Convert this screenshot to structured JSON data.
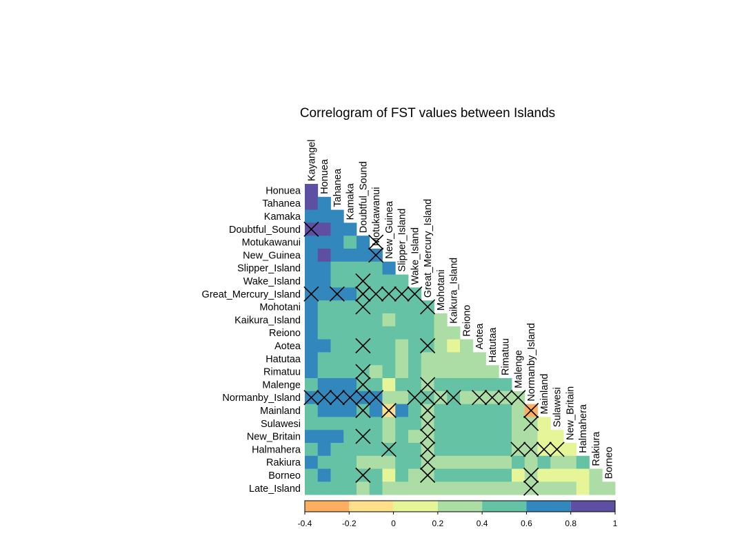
{
  "chart_data": {
    "type": "heatmap",
    "title": "Correlogram of FST values between Islands",
    "islands": [
      "Kayangel",
      "Honuea",
      "Tahanea",
      "Kamaka",
      "Doubtful_Sound",
      "Motukawanui",
      "New_Guinea",
      "Slipper_Island",
      "Wake_Island",
      "Great_Mercury_Island",
      "Mohotani",
      "Kaikura_Island",
      "Reiono",
      "Aotea",
      "Hatutaa",
      "Rimatuu",
      "Malenge",
      "Normanby_Island",
      "Mainland",
      "Sulawesi",
      "New_Britain",
      "Halmahera",
      "Rakiura",
      "Borneo",
      "Late_Island"
    ],
    "row_labels": [
      "Honuea",
      "Tahanea",
      "Kamaka",
      "Doubtful_Sound",
      "Motukawanui",
      "New_Guinea",
      "Slipper_Island",
      "Wake_Island",
      "Great_Mercury_Island",
      "Mohotani",
      "Kaikura_Island",
      "Reiono",
      "Aotea",
      "Hatutaa",
      "Rimatuu",
      "Malenge",
      "Normanby_Island",
      "Mainland",
      "Sulawesi",
      "New_Britain",
      "Halmahera",
      "Rakiura",
      "Borneo",
      "Late_Island"
    ],
    "col_labels": [
      "Kayangel",
      "Honuea",
      "Tahanea",
      "Kamaka",
      "Doubtful_Sound",
      "Motukawanui",
      "New_Guinea",
      "Slipper_Island",
      "Wake_Island",
      "Great_Mercury_Island",
      "Mohotani",
      "Kaikura_Island",
      "Reiono",
      "Aotea",
      "Hatutaa",
      "Rimatuu",
      "Malenge",
      "Normanby_Island",
      "Mainland",
      "Sulawesi",
      "New_Britain",
      "Halmahera",
      "Rakiura",
      "Borneo"
    ],
    "values": [
      [
        0.95
      ],
      [
        0.95,
        0.7
      ],
      [
        0.7,
        0.7,
        0.7
      ],
      [
        0.95,
        0.95,
        0.7,
        0.7
      ],
      [
        0.7,
        0.7,
        0.7,
        0.5,
        0.7
      ],
      [
        0.7,
        0.95,
        0.7,
        0.7,
        0.7,
        0.7
      ],
      [
        0.7,
        0.7,
        0.5,
        0.5,
        0.5,
        0.5,
        0.7
      ],
      [
        0.7,
        0.7,
        0.5,
        0.5,
        0.5,
        0.5,
        0.5,
        0.5
      ],
      [
        0.7,
        0.7,
        0.7,
        0.7,
        0.5,
        0.5,
        0.5,
        0.5,
        0.5
      ],
      [
        0.7,
        0.5,
        0.5,
        0.5,
        0.5,
        0.5,
        0.5,
        0.5,
        0.5,
        0.5
      ],
      [
        0.7,
        0.5,
        0.5,
        0.5,
        0.5,
        0.5,
        0.3,
        0.5,
        0.5,
        0.5,
        0.3
      ],
      [
        0.7,
        0.5,
        0.5,
        0.5,
        0.5,
        0.5,
        0.5,
        0.5,
        0.5,
        0.5,
        0.3,
        0.3
      ],
      [
        0.7,
        0.7,
        0.5,
        0.5,
        0.5,
        0.5,
        0.5,
        0.3,
        0.5,
        0.5,
        0.3,
        0.1,
        0.3
      ],
      [
        0.7,
        0.5,
        0.5,
        0.5,
        0.5,
        0.5,
        0.5,
        0.3,
        0.5,
        0.3,
        0.3,
        0.3,
        0.3,
        0.3
      ],
      [
        0.7,
        0.5,
        0.5,
        0.5,
        0.5,
        0.3,
        0.5,
        0.3,
        0.5,
        0.3,
        0.3,
        0.3,
        0.3,
        0.3,
        0.3
      ],
      [
        0.5,
        0.7,
        0.7,
        0.7,
        0.5,
        0.5,
        0.1,
        0.5,
        0.5,
        0.3,
        0.5,
        0.5,
        0.5,
        0.5,
        0.5,
        0.5
      ],
      [
        0.7,
        0.7,
        0.7,
        0.7,
        0.7,
        0.7,
        0.3,
        0.3,
        0.5,
        0.5,
        0.3,
        0.5,
        0.3,
        0.3,
        0.3,
        0.3,
        0.3
      ],
      [
        0.5,
        0.7,
        0.7,
        0.7,
        0.5,
        0.7,
        -0.1,
        0.7,
        0.5,
        0.3,
        0.5,
        0.5,
        0.5,
        0.5,
        0.5,
        0.5,
        0.3,
        -0.3
      ],
      [
        0.5,
        0.5,
        0.5,
        0.5,
        0.5,
        0.5,
        0.3,
        0.5,
        0.5,
        0.3,
        0.5,
        0.5,
        0.5,
        0.5,
        0.5,
        0.5,
        0.3,
        0.3,
        0.1
      ],
      [
        0.7,
        0.7,
        0.7,
        0.5,
        0.5,
        0.5,
        0.3,
        0.5,
        0.3,
        0.3,
        0.5,
        0.5,
        0.5,
        0.5,
        0.5,
        0.5,
        0.3,
        0.3,
        0.1,
        0.1
      ],
      [
        0.5,
        0.7,
        0.5,
        0.5,
        0.5,
        0.5,
        0.5,
        0.5,
        0.5,
        0.3,
        0.5,
        0.5,
        0.5,
        0.5,
        0.5,
        0.5,
        0.3,
        0.3,
        0.1,
        0.1,
        0.1
      ],
      [
        0.7,
        0.5,
        0.5,
        0.5,
        0.3,
        0.3,
        0.3,
        0.5,
        0.5,
        0.3,
        0.3,
        0.3,
        0.3,
        0.3,
        0.3,
        0.3,
        0.5,
        0.3,
        0.5,
        0.3,
        0.3,
        0.5
      ],
      [
        0.5,
        0.7,
        0.5,
        0.5,
        0.5,
        0.5,
        0.1,
        0.5,
        0.3,
        0.3,
        0.5,
        0.5,
        0.5,
        0.5,
        0.5,
        0.5,
        0.1,
        0.3,
        0.1,
        0.1,
        0.1,
        0.1,
        0.3
      ],
      [
        0.5,
        0.5,
        0.5,
        0.5,
        0.3,
        0.5,
        0.3,
        0.3,
        0.3,
        0.3,
        0.3,
        0.3,
        0.3,
        0.3,
        0.3,
        0.3,
        0.3,
        0.3,
        0.3,
        0.3,
        0.3,
        0.1,
        0.3,
        0.3
      ]
    ],
    "crosses": [
      [
        3,
        0
      ],
      [
        8,
        0
      ],
      [
        8,
        2
      ],
      [
        8,
        4
      ],
      [
        8,
        5
      ],
      [
        8,
        6
      ],
      [
        8,
        7
      ],
      [
        8,
        8
      ],
      [
        4,
        5
      ],
      [
        5,
        5
      ],
      [
        7,
        4
      ],
      [
        8,
        4
      ],
      [
        9,
        4
      ],
      [
        9,
        9
      ],
      [
        12,
        4
      ],
      [
        12,
        9
      ],
      [
        14,
        4
      ],
      [
        15,
        4
      ],
      [
        15,
        9
      ],
      [
        16,
        0
      ],
      [
        16,
        1
      ],
      [
        16,
        2
      ],
      [
        16,
        3
      ],
      [
        16,
        4
      ],
      [
        16,
        5
      ],
      [
        16,
        8
      ],
      [
        16,
        9
      ],
      [
        16,
        10
      ],
      [
        16,
        11
      ],
      [
        16,
        13
      ],
      [
        16,
        14
      ],
      [
        16,
        15
      ],
      [
        16,
        16
      ],
      [
        17,
        4
      ],
      [
        17,
        6
      ],
      [
        17,
        9
      ],
      [
        17,
        17
      ],
      [
        18,
        9
      ],
      [
        18,
        17
      ],
      [
        19,
        4
      ],
      [
        19,
        9
      ],
      [
        20,
        6
      ],
      [
        20,
        9
      ],
      [
        20,
        16
      ],
      [
        20,
        17
      ],
      [
        20,
        18
      ],
      [
        20,
        19
      ],
      [
        21,
        9
      ],
      [
        22,
        4
      ],
      [
        22,
        9
      ],
      [
        22,
        17
      ],
      [
        23,
        17
      ]
    ],
    "colorbar": {
      "ticks": [
        "-0.4",
        "-0.2",
        "0",
        "0.2",
        "0.4",
        "0.6",
        "0.8",
        "1"
      ],
      "bins": [
        -0.4,
        -0.2,
        0,
        0.2,
        0.4,
        0.6,
        0.8,
        1
      ],
      "colors": [
        "#FDAE61",
        "#FEE08B",
        "#E6F598",
        "#ABDDA4",
        "#66C2A5",
        "#3288BD",
        "#5E4FA2"
      ],
      "range": [
        -0.4,
        1
      ]
    }
  }
}
